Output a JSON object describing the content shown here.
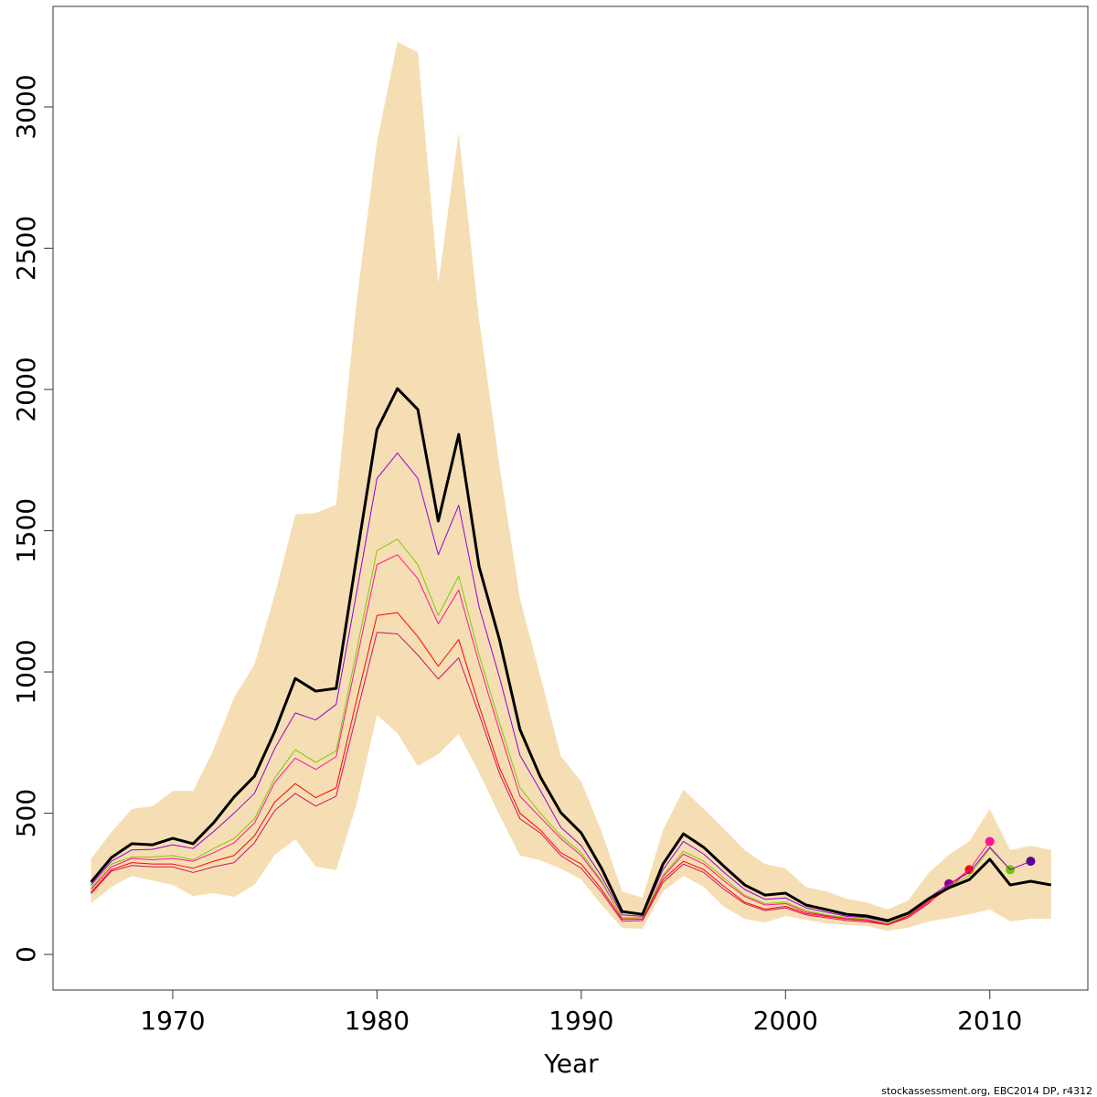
{
  "chart_data": {
    "type": "line",
    "x_label": "Year",
    "footer": "stockassessment.org, EBC2014 DP, r4312",
    "x": [
      1966,
      1967,
      1968,
      1969,
      1970,
      1971,
      1972,
      1973,
      1974,
      1975,
      1976,
      1977,
      1978,
      1979,
      1980,
      1981,
      1982,
      1983,
      1984,
      1985,
      1986,
      1987,
      1988,
      1989,
      1990,
      1991,
      1992,
      1993,
      1994,
      1995,
      1996,
      1997,
      1998,
      1999,
      2000,
      2001,
      2002,
      2003,
      2004,
      2005,
      2006,
      2007,
      2008,
      2009,
      2010,
      2011,
      2012,
      2013
    ],
    "band": {
      "color": "#f5deb3",
      "upper": [
        337,
        434,
        515,
        524,
        579,
        579,
        725,
        909,
        1026,
        1275,
        1557,
        1563,
        1592,
        2311,
        2877,
        3230,
        3194,
        2375,
        2909,
        2246,
        1728,
        1259,
        984,
        702,
        612,
        434,
        223,
        201,
        440,
        583,
        515,
        443,
        369,
        320,
        304,
        239,
        223,
        197,
        184,
        159,
        191,
        288,
        353,
        401,
        515,
        369,
        385,
        369
      ],
      "lower": [
        181,
        239,
        278,
        262,
        246,
        207,
        217,
        204,
        246,
        353,
        408,
        311,
        298,
        531,
        848,
        783,
        667,
        709,
        780,
        644,
        492,
        350,
        333,
        304,
        265,
        175,
        94,
        91,
        223,
        278,
        239,
        168,
        126,
        113,
        136,
        123,
        110,
        104,
        100,
        84,
        94,
        117,
        129,
        142,
        159,
        117,
        126,
        126
      ]
    },
    "series": [
      {
        "color": "#d0106a",
        "end_marker": true,
        "marker_color": "#8b008b",
        "values": [
          215,
          295,
          315,
          310,
          310,
          290,
          310,
          325,
          395,
          510,
          570,
          525,
          560,
          850,
          1140,
          1135,
          1060,
          975,
          1050,
          850,
          640,
          480,
          430,
          350,
          305,
          220,
          118,
          120,
          255,
          320,
          290,
          230,
          180,
          155,
          165,
          140,
          130,
          120,
          115,
          105,
          130,
          180,
          250,
          null,
          null,
          null,
          null,
          null
        ]
      },
      {
        "color": "#ff0000",
        "end_marker": true,
        "marker_color": "#ff0000",
        "values": [
          220,
          300,
          325,
          320,
          320,
          305,
          330,
          350,
          420,
          540,
          605,
          555,
          590,
          900,
          1200,
          1210,
          1125,
          1020,
          1115,
          880,
          660,
          500,
          440,
          360,
          320,
          230,
          125,
          125,
          265,
          330,
          300,
          240,
          185,
          160,
          170,
          145,
          135,
          125,
          120,
          105,
          135,
          185,
          235,
          300,
          null,
          null,
          null,
          null
        ]
      },
      {
        "color": "#ff1493",
        "end_marker": true,
        "marker_color": "#ff1493",
        "values": [
          230,
          310,
          340,
          335,
          340,
          330,
          360,
          395,
          465,
          610,
          695,
          655,
          700,
          1040,
          1380,
          1415,
          1330,
          1170,
          1290,
          1030,
          790,
          560,
          485,
          410,
          350,
          255,
          130,
          130,
          275,
          355,
          320,
          260,
          205,
          175,
          180,
          150,
          138,
          128,
          122,
          108,
          138,
          190,
          245,
          300,
          400,
          null,
          null,
          null
        ]
      },
      {
        "color": "#7fcc00",
        "end_marker": true,
        "marker_color": "#66cc00",
        "values": [
          235,
          320,
          345,
          345,
          350,
          335,
          375,
          410,
          480,
          625,
          725,
          680,
          720,
          1075,
          1430,
          1470,
          1380,
          1200,
          1340,
          1060,
          820,
          590,
          500,
          420,
          360,
          260,
          130,
          130,
          280,
          365,
          330,
          270,
          210,
          180,
          185,
          155,
          140,
          130,
          125,
          110,
          140,
          195,
          240,
          280,
          375,
          300,
          null,
          null
        ]
      },
      {
        "color": "#9400d3",
        "end_marker": true,
        "marker_color": "#5b0099",
        "values": [
          245,
          330,
          370,
          372,
          388,
          375,
          435,
          500,
          570,
          730,
          855,
          830,
          885,
          1280,
          1685,
          1775,
          1685,
          1415,
          1590,
          1230,
          980,
          705,
          580,
          450,
          385,
          275,
          140,
          135,
          300,
          400,
          355,
          290,
          230,
          195,
          200,
          165,
          150,
          135,
          130,
          115,
          145,
          200,
          250,
          290,
          380,
          300,
          330,
          null
        ]
      },
      {
        "color": "#000000",
        "width": 3,
        "values": [
          256,
          343,
          392,
          388,
          411,
          392,
          466,
          557,
          631,
          790,
          977,
          932,
          942,
          1405,
          1858,
          2003,
          1929,
          1534,
          1841,
          1372,
          1113,
          796,
          628,
          502,
          430,
          304,
          152,
          142,
          320,
          427,
          379,
          311,
          246,
          210,
          217,
          175,
          159,
          142,
          136,
          120,
          146,
          197,
          236,
          265,
          337,
          246,
          259,
          246
        ]
      }
    ],
    "xlim": [
      1964.14,
      2014.8
    ],
    "xticks": [
      1970,
      1980,
      1990,
      2000,
      2010
    ],
    "ylim": [
      -126,
      3356
    ],
    "yticks": [
      0,
      500,
      1000,
      1500,
      2000,
      2500,
      3000
    ],
    "grid": false
  }
}
